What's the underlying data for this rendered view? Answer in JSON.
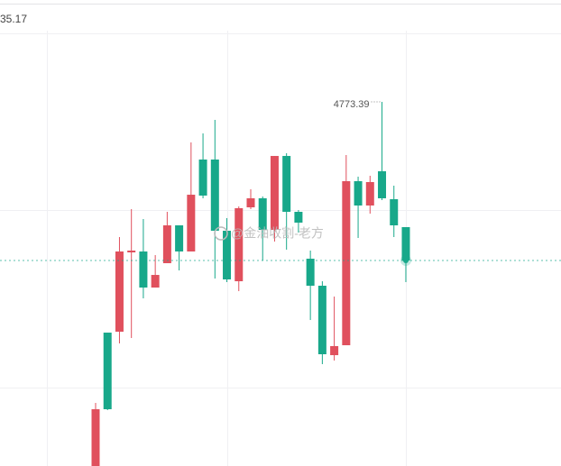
{
  "header": "35.17",
  "chart_data": {
    "type": "candlestick",
    "ylim": [
      4685.65,
      4797.94
    ],
    "up_color": "#e0505d",
    "down_color": "#18a88a",
    "grid": true,
    "last_price": 4735.17,
    "watermark": "@金油收割-老方",
    "annotation": {
      "text": "4773.39",
      "candle": 24
    },
    "open": [
      4685.65,
      4717.79,
      4718.01,
      4737.12,
      4737.34,
      4728.65,
      4734.52,
      4743.64,
      4737.34,
      4759.5,
      4759.5,
      4742.34,
      4730.17,
      4747.98,
      4750.16,
      4742.55,
      4760.36,
      4746.9,
      4735.6,
      4729.09,
      4712.36,
      4714.75,
      4754.28,
      4748.42,
      4756.67,
      4749.94,
      4743.21
    ],
    "high": [
      4700.85,
      4717.79,
      4740.82,
      4747.55,
      4745.16,
      4736.47,
      4746.9,
      4743.64,
      4763.62,
      4765.79,
      4769.05,
      4745.38,
      4748.2,
      4752.33,
      4750.59,
      4760.36,
      4761.02,
      4747.33,
      4737.56,
      4730.17,
      4726.48,
      4760.58,
      4755.37,
      4755.59,
      4773.39,
      4753.2,
      4743.21
    ],
    "low": [
      4685.65,
      4699.11,
      4715.19,
      4716.49,
      4726.05,
      4728.65,
      4734.52,
      4732.78,
      4737.34,
      4750.16,
      4730.83,
      4729.96,
      4727.78,
      4747.55,
      4735.17,
      4739.73,
      4737.78,
      4741.9,
      4720.83,
      4710.19,
      4711.06,
      4714.75,
      4740.6,
      4746.46,
      4749.72,
      4740.82,
      4729.96
    ],
    "close": [
      4699.33,
      4699.33,
      4737.34,
      4737.56,
      4728.65,
      4731.69,
      4743.64,
      4737.34,
      4751.02,
      4750.81,
      4742.34,
      4730.61,
      4747.77,
      4750.16,
      4742.55,
      4760.36,
      4746.9,
      4744.29,
      4729.09,
      4712.58,
      4714.54,
      4754.28,
      4748.42,
      4754.07,
      4750.16,
      4743.64,
      4735.17
    ]
  }
}
